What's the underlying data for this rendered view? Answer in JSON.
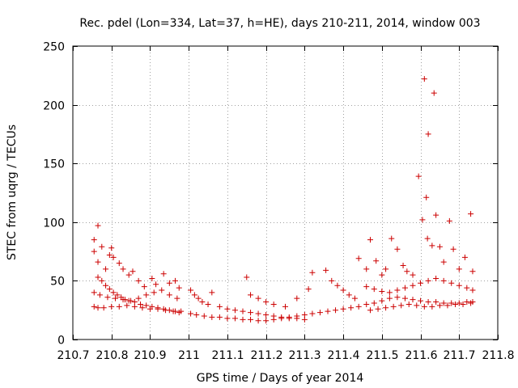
{
  "chart_data": {
    "type": "scatter",
    "title": "Rec. pdel (Lon=334, Lat=37, h=HE), days 210-211, 2014, window 003",
    "xlabel": "GPS time / Days of year 2014",
    "ylabel": "STEC from uqrg / TECUs",
    "xlim": [
      210.7,
      211.8
    ],
    "ylim": [
      0,
      250
    ],
    "xticks": [
      210.7,
      210.8,
      210.9,
      211,
      211.1,
      211.2,
      211.3,
      211.4,
      211.5,
      211.6,
      211.7,
      211.8
    ],
    "xtick_labels": [
      "210.7",
      "210.8",
      "210.9",
      "211",
      "211.1",
      "211.2",
      "211.3",
      "211.4",
      "211.5",
      "211.6",
      "211.7",
      "211.8"
    ],
    "yticks": [
      0,
      50,
      100,
      150,
      200,
      250
    ],
    "ytick_labels": [
      "0",
      "50",
      "100",
      "150",
      "200",
      "250"
    ],
    "grid": true,
    "marker": "+",
    "color": "#cc0000",
    "series": [
      {
        "name": "STEC",
        "points": [
          [
            210.755,
            85
          ],
          [
            210.755,
            75
          ],
          [
            210.765,
            97
          ],
          [
            210.765,
            66
          ],
          [
            210.775,
            79
          ],
          [
            210.785,
            60
          ],
          [
            210.795,
            72
          ],
          [
            210.8,
            78
          ],
          [
            210.805,
            70
          ],
          [
            210.82,
            65
          ],
          [
            210.83,
            60
          ],
          [
            210.845,
            55
          ],
          [
            210.855,
            58
          ],
          [
            210.87,
            50
          ],
          [
            210.885,
            45
          ],
          [
            210.905,
            52
          ],
          [
            210.915,
            47
          ],
          [
            210.935,
            56
          ],
          [
            210.95,
            48
          ],
          [
            210.965,
            50
          ],
          [
            210.975,
            44
          ],
          [
            210.765,
            53
          ],
          [
            210.775,
            50
          ],
          [
            210.785,
            46
          ],
          [
            210.795,
            43
          ],
          [
            210.805,
            40
          ],
          [
            210.815,
            38
          ],
          [
            210.825,
            36
          ],
          [
            210.835,
            34
          ],
          [
            210.845,
            33
          ],
          [
            210.86,
            32
          ],
          [
            210.875,
            30
          ],
          [
            210.89,
            29
          ],
          [
            210.905,
            28
          ],
          [
            210.92,
            27
          ],
          [
            210.935,
            26
          ],
          [
            210.95,
            25
          ],
          [
            210.965,
            24
          ],
          [
            210.98,
            24
          ],
          [
            210.755,
            28
          ],
          [
            210.765,
            27
          ],
          [
            210.78,
            27
          ],
          [
            210.8,
            28
          ],
          [
            210.82,
            28
          ],
          [
            210.84,
            29
          ],
          [
            210.86,
            28
          ],
          [
            210.88,
            27
          ],
          [
            210.9,
            26
          ],
          [
            210.92,
            26
          ],
          [
            210.94,
            25
          ],
          [
            210.96,
            24
          ],
          [
            210.975,
            23
          ],
          [
            210.755,
            40
          ],
          [
            210.77,
            38
          ],
          [
            210.79,
            36
          ],
          [
            210.81,
            35
          ],
          [
            210.83,
            34
          ],
          [
            210.85,
            33
          ],
          [
            210.87,
            35
          ],
          [
            210.89,
            38
          ],
          [
            210.91,
            40
          ],
          [
            210.93,
            42
          ],
          [
            210.95,
            38
          ],
          [
            210.97,
            35
          ],
          [
            211.005,
            42
          ],
          [
            211.015,
            38
          ],
          [
            211.025,
            35
          ],
          [
            211.035,
            32
          ],
          [
            211.05,
            30
          ],
          [
            211.06,
            40
          ],
          [
            211.08,
            28
          ],
          [
            211.1,
            26
          ],
          [
            211.12,
            25
          ],
          [
            211.14,
            24
          ],
          [
            211.16,
            23
          ],
          [
            211.18,
            22
          ],
          [
            211.2,
            21
          ],
          [
            211.22,
            20
          ],
          [
            211.24,
            19
          ],
          [
            211.26,
            18
          ],
          [
            211.28,
            18
          ],
          [
            211.3,
            17
          ],
          [
            211.005,
            22
          ],
          [
            211.02,
            21
          ],
          [
            211.04,
            20
          ],
          [
            211.06,
            19
          ],
          [
            211.08,
            19
          ],
          [
            211.1,
            18
          ],
          [
            211.12,
            18
          ],
          [
            211.14,
            17
          ],
          [
            211.16,
            17
          ],
          [
            211.18,
            16
          ],
          [
            211.2,
            16
          ],
          [
            211.22,
            17
          ],
          [
            211.24,
            18
          ],
          [
            211.26,
            19
          ],
          [
            211.28,
            20
          ],
          [
            211.3,
            21
          ],
          [
            211.32,
            22
          ],
          [
            211.34,
            23
          ],
          [
            211.36,
            24
          ],
          [
            211.38,
            25
          ],
          [
            211.4,
            26
          ],
          [
            211.42,
            27
          ],
          [
            211.44,
            28
          ],
          [
            211.15,
            53
          ],
          [
            211.16,
            38
          ],
          [
            211.18,
            35
          ],
          [
            211.2,
            32
          ],
          [
            211.22,
            30
          ],
          [
            211.25,
            28
          ],
          [
            211.28,
            35
          ],
          [
            211.31,
            43
          ],
          [
            211.32,
            57
          ],
          [
            211.355,
            59
          ],
          [
            211.37,
            50
          ],
          [
            211.385,
            46
          ],
          [
            211.4,
            42
          ],
          [
            211.415,
            38
          ],
          [
            211.43,
            35
          ],
          [
            211.44,
            69
          ],
          [
            211.46,
            60
          ],
          [
            211.47,
            85
          ],
          [
            211.485,
            67
          ],
          [
            211.5,
            55
          ],
          [
            211.51,
            60
          ],
          [
            211.525,
            86
          ],
          [
            211.54,
            77
          ],
          [
            211.555,
            63
          ],
          [
            211.565,
            58
          ],
          [
            211.58,
            55
          ],
          [
            211.595,
            139
          ],
          [
            211.61,
            222
          ],
          [
            211.605,
            102
          ],
          [
            211.615,
            121
          ],
          [
            211.618,
            86
          ],
          [
            211.62,
            175
          ],
          [
            211.63,
            80
          ],
          [
            211.635,
            210
          ],
          [
            211.64,
            106
          ],
          [
            211.65,
            79
          ],
          [
            211.66,
            66
          ],
          [
            211.675,
            101
          ],
          [
            211.685,
            77
          ],
          [
            211.7,
            60
          ],
          [
            211.715,
            70
          ],
          [
            211.73,
            107
          ],
          [
            211.735,
            58
          ],
          [
            211.46,
            30
          ],
          [
            211.48,
            31
          ],
          [
            211.5,
            33
          ],
          [
            211.52,
            35
          ],
          [
            211.54,
            36
          ],
          [
            211.56,
            35
          ],
          [
            211.58,
            34
          ],
          [
            211.6,
            33
          ],
          [
            211.62,
            32
          ],
          [
            211.64,
            32
          ],
          [
            211.66,
            31
          ],
          [
            211.68,
            31
          ],
          [
            211.7,
            31
          ],
          [
            211.72,
            32
          ],
          [
            211.735,
            32
          ],
          [
            211.46,
            45
          ],
          [
            211.48,
            43
          ],
          [
            211.5,
            41
          ],
          [
            211.52,
            40
          ],
          [
            211.54,
            42
          ],
          [
            211.56,
            44
          ],
          [
            211.58,
            46
          ],
          [
            211.6,
            48
          ],
          [
            211.62,
            50
          ],
          [
            211.64,
            52
          ],
          [
            211.66,
            50
          ],
          [
            211.68,
            48
          ],
          [
            211.7,
            46
          ],
          [
            211.72,
            44
          ],
          [
            211.735,
            42
          ],
          [
            211.47,
            25
          ],
          [
            211.49,
            26
          ],
          [
            211.51,
            27
          ],
          [
            211.53,
            28
          ],
          [
            211.55,
            29
          ],
          [
            211.57,
            30
          ],
          [
            211.59,
            29
          ],
          [
            211.61,
            28
          ],
          [
            211.63,
            28
          ],
          [
            211.65,
            29
          ],
          [
            211.67,
            29
          ],
          [
            211.69,
            30
          ],
          [
            211.71,
            30
          ],
          [
            211.73,
            31
          ]
        ]
      }
    ]
  }
}
